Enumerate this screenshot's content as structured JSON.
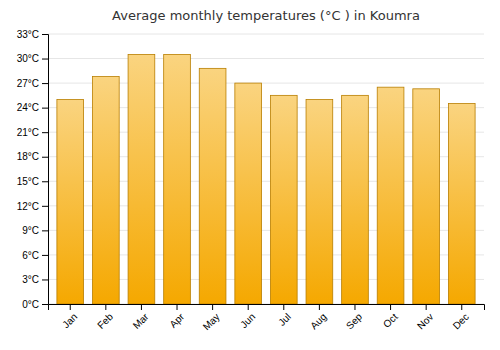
{
  "chart_data": {
    "type": "bar",
    "title": "Average monthly temperatures (°C ) in Koumra",
    "categories": [
      "Jan",
      "Feb",
      "Mar",
      "Apr",
      "May",
      "Jun",
      "Jul",
      "Aug",
      "Sep",
      "Oct",
      "Nov",
      "Dec"
    ],
    "values": [
      25.0,
      27.8,
      30.5,
      30.5,
      28.8,
      27.0,
      25.5,
      25.0,
      25.5,
      26.5,
      26.3,
      24.5
    ],
    "color": "#F5A800",
    "ylim": [
      0,
      33
    ],
    "yticks": [
      {
        "value": 0,
        "label": "0°C"
      },
      {
        "value": 3,
        "label": "3°C"
      },
      {
        "value": 6,
        "label": "6°C"
      },
      {
        "value": 9,
        "label": "9°C"
      },
      {
        "value": 12,
        "label": "12°C"
      },
      {
        "value": 15,
        "label": "15°C"
      },
      {
        "value": 18,
        "label": "18°C"
      },
      {
        "value": 21,
        "label": "21°C"
      },
      {
        "value": 24,
        "label": "24°C"
      },
      {
        "value": 27,
        "label": "27°C"
      },
      {
        "value": 30,
        "label": "30°C"
      },
      {
        "value": 33,
        "label": "33°C"
      }
    ],
    "grid": true
  }
}
